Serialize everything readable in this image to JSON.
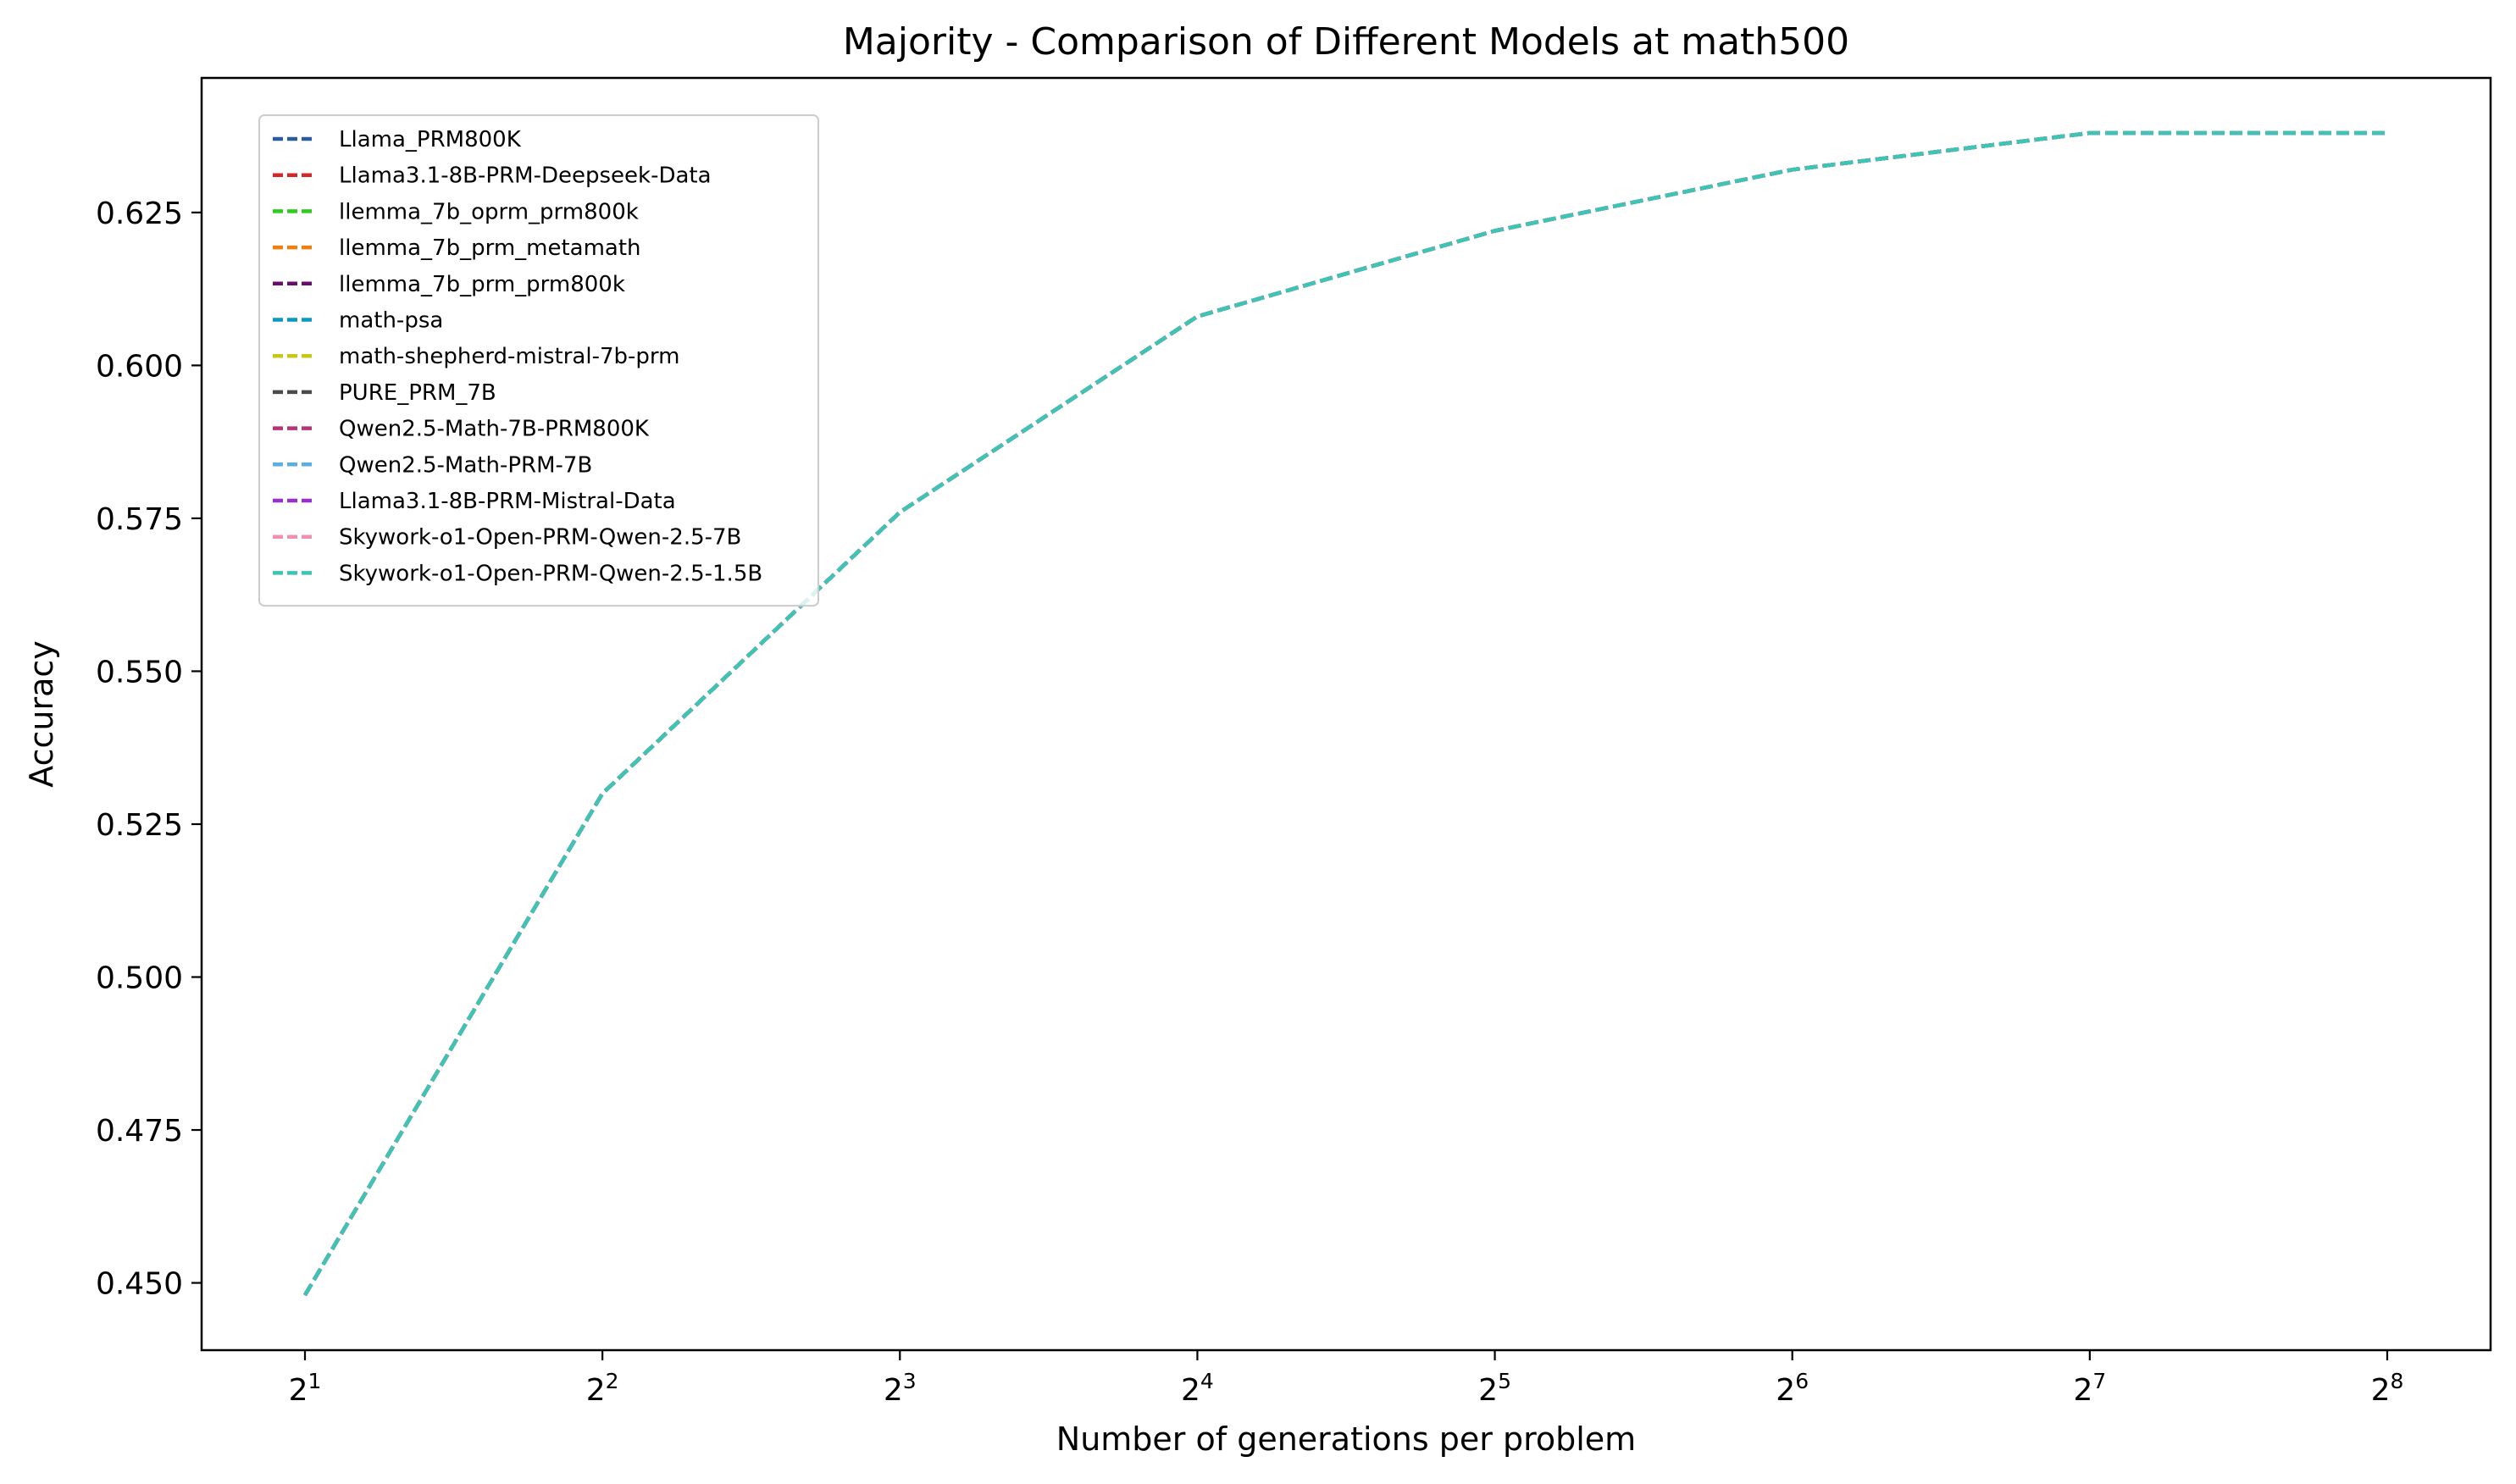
{
  "chart_data": {
    "type": "line",
    "title": "Majority - Comparison of Different Models at math500",
    "xlabel": "Number of generations per problem",
    "ylabel": "Accuracy",
    "x_scale": "log2",
    "x": [
      2,
      4,
      8,
      16,
      32,
      64,
      128,
      256
    ],
    "x_tick_labels": [
      {
        "base": "2",
        "exp": "1"
      },
      {
        "base": "2",
        "exp": "2"
      },
      {
        "base": "2",
        "exp": "3"
      },
      {
        "base": "2",
        "exp": "4"
      },
      {
        "base": "2",
        "exp": "5"
      },
      {
        "base": "2",
        "exp": "6"
      },
      {
        "base": "2",
        "exp": "7"
      },
      {
        "base": "2",
        "exp": "8"
      }
    ],
    "y_ticks": [
      "0.450",
      "0.475",
      "0.500",
      "0.525",
      "0.550",
      "0.575",
      "0.600",
      "0.625"
    ],
    "ylim": [
      0.439,
      0.647
    ],
    "grid": false,
    "line_style": "dashed",
    "legend_position": "upper-left",
    "series": [
      {
        "name": "Llama_PRM800K",
        "color": "#2b5d9e",
        "values": [
          0.448,
          0.53,
          0.576,
          0.608,
          0.622,
          0.632,
          0.638,
          0.638
        ]
      },
      {
        "name": "Llama3.1-8B-PRM-Deepseek-Data",
        "color": "#d62728",
        "values": [
          0.448,
          0.53,
          0.576,
          0.608,
          0.622,
          0.632,
          0.638,
          0.638
        ]
      },
      {
        "name": "llemma_7b_oprm_prm800k",
        "color": "#2ecc1f",
        "values": [
          0.448,
          0.53,
          0.576,
          0.608,
          0.622,
          0.632,
          0.638,
          0.638
        ]
      },
      {
        "name": "llemma_7b_prm_metamath",
        "color": "#f07f0f",
        "values": [
          0.448,
          0.53,
          0.576,
          0.608,
          0.622,
          0.632,
          0.638,
          0.638
        ]
      },
      {
        "name": "llemma_7b_prm_prm800k",
        "color": "#6a0d6a",
        "values": [
          0.448,
          0.53,
          0.576,
          0.608,
          0.622,
          0.632,
          0.638,
          0.638
        ]
      },
      {
        "name": "math-psa",
        "color": "#0a97c0",
        "values": [
          0.448,
          0.53,
          0.576,
          0.608,
          0.622,
          0.632,
          0.638,
          0.638
        ]
      },
      {
        "name": "math-shepherd-mistral-7b-prm",
        "color": "#c8c812",
        "values": [
          0.448,
          0.53,
          0.576,
          0.608,
          0.622,
          0.632,
          0.638,
          0.638
        ]
      },
      {
        "name": "PURE_PRM_7B",
        "color": "#4a4a4a",
        "values": [
          0.448,
          0.53,
          0.576,
          0.608,
          0.622,
          0.632,
          0.638,
          0.638
        ]
      },
      {
        "name": "Qwen2.5-Math-7B-PRM800K",
        "color": "#b8327a",
        "values": [
          0.448,
          0.53,
          0.576,
          0.608,
          0.622,
          0.632,
          0.638,
          0.638
        ]
      },
      {
        "name": "Qwen2.5-Math-PRM-7B",
        "color": "#5aaee0",
        "values": [
          0.448,
          0.53,
          0.576,
          0.608,
          0.622,
          0.632,
          0.638,
          0.638
        ]
      },
      {
        "name": "Llama3.1-8B-PRM-Mistral-Data",
        "color": "#9a2fd1",
        "values": [
          0.448,
          0.53,
          0.576,
          0.608,
          0.622,
          0.632,
          0.638,
          0.638
        ]
      },
      {
        "name": "Skywork-o1-Open-PRM-Qwen-2.5-7B",
        "color": "#f08fb0",
        "values": [
          0.448,
          0.53,
          0.576,
          0.608,
          0.622,
          0.632,
          0.638,
          0.638
        ]
      },
      {
        "name": "Skywork-o1-Open-PRM-Qwen-2.5-1.5B",
        "color": "#3cc4b4",
        "values": [
          0.448,
          0.53,
          0.576,
          0.608,
          0.622,
          0.632,
          0.638,
          0.638
        ]
      }
    ]
  }
}
